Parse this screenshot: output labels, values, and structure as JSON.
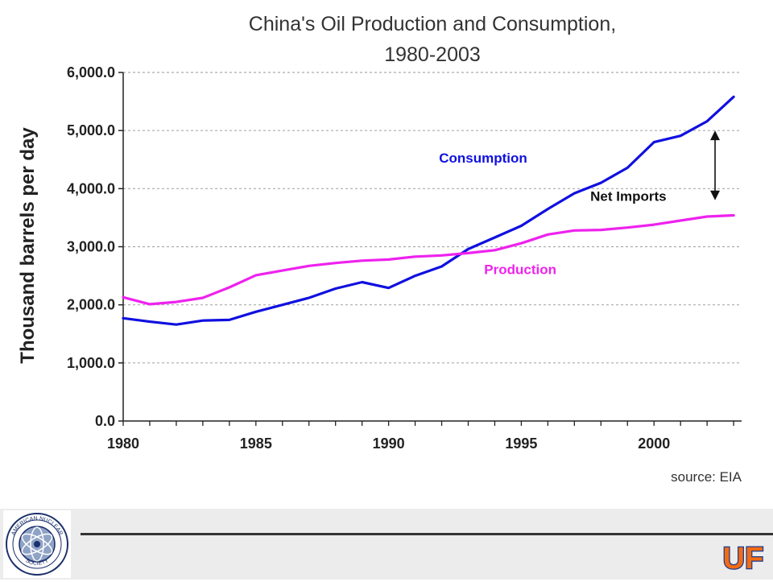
{
  "chart_data": {
    "type": "line",
    "title": [
      "China's Oil Production and Consumption,",
      "1980-2003"
    ],
    "ylabel": "Thousand barrels per day",
    "xlabel": "",
    "x": [
      1980,
      1981,
      1982,
      1983,
      1984,
      1985,
      1986,
      1987,
      1988,
      1989,
      1990,
      1991,
      1992,
      1993,
      1994,
      1995,
      1996,
      1997,
      1998,
      1999,
      2000,
      2001,
      2002,
      2003
    ],
    "xlim": [
      1980,
      2003.3
    ],
    "ylim": [
      0,
      6000
    ],
    "x_ticks": [
      {
        "value": 1980,
        "label": "1980"
      },
      {
        "value": 1985,
        "label": "1985"
      },
      {
        "value": 1990,
        "label": "1990"
      },
      {
        "value": 1995,
        "label": "1995"
      },
      {
        "value": 2000,
        "label": "2000"
      }
    ],
    "y_ticks": [
      {
        "value": 0,
        "label": "0.0"
      },
      {
        "value": 1000,
        "label": "1,000.0"
      },
      {
        "value": 2000,
        "label": "2,000.0"
      },
      {
        "value": 3000,
        "label": "3,000.0"
      },
      {
        "value": 4000,
        "label": "4,000.0"
      },
      {
        "value": 5000,
        "label": "5,000.0"
      },
      {
        "value": 6000,
        "label": "6,000.0"
      }
    ],
    "grid": "horizontal dotted",
    "series": [
      {
        "name": "Consumption",
        "color": "#1010e0",
        "values": [
          1770,
          1710,
          1660,
          1730,
          1740,
          1880,
          2000,
          2120,
          2280,
          2390,
          2290,
          2500,
          2660,
          2960,
          3160,
          3360,
          3650,
          3920,
          4100,
          4360,
          4800,
          4910,
          5160,
          5580
        ]
      },
      {
        "name": "Production",
        "color": "#ee22ee",
        "values": [
          2130,
          2010,
          2050,
          2120,
          2300,
          2510,
          2590,
          2670,
          2720,
          2760,
          2780,
          2830,
          2850,
          2890,
          2940,
          3060,
          3210,
          3280,
          3290,
          3330,
          3380,
          3450,
          3520,
          3540
        ]
      }
    ],
    "annotations": {
      "consumption_label": {
        "text": "Consumption",
        "color": "#1010e0",
        "x": 1991.9,
        "y": 4450
      },
      "production_label": {
        "text": "Production",
        "color": "#ee22ee",
        "x": 1993.6,
        "y": 2530
      },
      "net_imports_label": {
        "text": "Net Imports",
        "color": "#111111",
        "x": 1997.6,
        "y": 3790
      },
      "net_imports_arrow": {
        "x": 2002.3,
        "y_from": 5000,
        "y_to": 3800
      }
    },
    "source": "source: EIA"
  },
  "footer": {
    "logo_left": "American Nuclear Society",
    "logo_right": "UF"
  },
  "colors": {
    "footer_bg": "#ececec",
    "uf_orange": "#f26b13",
    "uf_blue": "#1a3a8c"
  }
}
